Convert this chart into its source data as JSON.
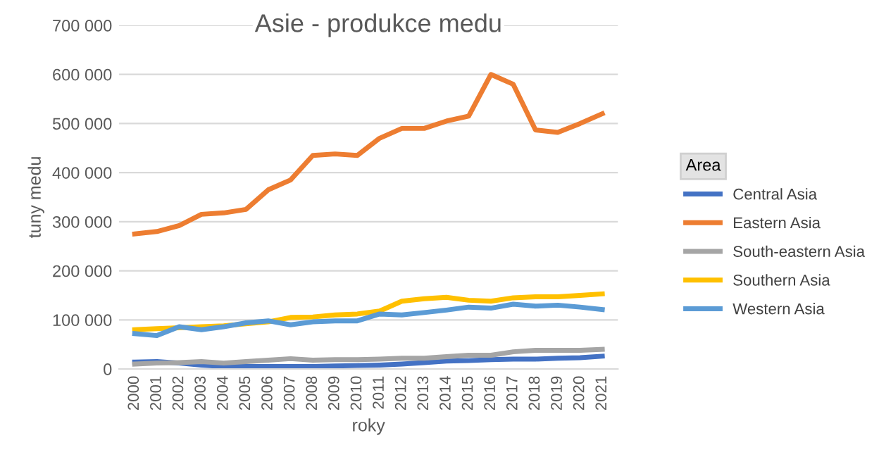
{
  "chart_data": {
    "type": "line",
    "title": "Asie - produkce medu",
    "xlabel": "roky",
    "ylabel": "tuny medu",
    "legend_title": "Area",
    "legend": "right",
    "grid": "y",
    "categories": [
      "2000",
      "2001",
      "2002",
      "2003",
      "2004",
      "2005",
      "2006",
      "2007",
      "2008",
      "2009",
      "2010",
      "2011",
      "2012",
      "2013",
      "2014",
      "2015",
      "2016",
      "2017",
      "2018",
      "2019",
      "2020",
      "2021"
    ],
    "ylim": [
      0,
      700000
    ],
    "yticks": [
      {
        "value": 0,
        "label": "0"
      },
      {
        "value": 100000,
        "label": "100 000"
      },
      {
        "value": 200000,
        "label": "200 000"
      },
      {
        "value": 300000,
        "label": "300 000"
      },
      {
        "value": 400000,
        "label": "400 000"
      },
      {
        "value": 500000,
        "label": "500 000"
      },
      {
        "value": 600000,
        "label": "600 000"
      },
      {
        "value": 700000,
        "label": "700 000"
      }
    ],
    "series": [
      {
        "name": "Central Asia",
        "color": "#4472c4",
        "values": [
          14000,
          15000,
          12000,
          8000,
          5000,
          5000,
          5000,
          5000,
          5000,
          6000,
          7000,
          8000,
          10000,
          13000,
          16000,
          17000,
          19000,
          20000,
          20000,
          22000,
          23000,
          26000
        ]
      },
      {
        "name": "Eastern Asia",
        "color": "#ed7d31",
        "values": [
          275000,
          280000,
          292000,
          315000,
          318000,
          325000,
          365000,
          385000,
          435000,
          438000,
          435000,
          470000,
          490000,
          490000,
          505000,
          515000,
          600000,
          580000,
          487000,
          482000,
          500000,
          520000
        ]
      },
      {
        "name": "South-eastern Asia",
        "color": "#a5a5a5",
        "values": [
          10000,
          12000,
          13000,
          15000,
          12000,
          15000,
          18000,
          21000,
          18000,
          19000,
          19000,
          20000,
          22000,
          22000,
          25000,
          28000,
          28000,
          35000,
          38000,
          38000,
          38000,
          40000
        ]
      },
      {
        "name": "Southern Asia",
        "color": "#ffc000",
        "values": [
          80000,
          82000,
          84000,
          86000,
          88000,
          92000,
          96000,
          105000,
          106000,
          110000,
          112000,
          118000,
          138000,
          143000,
          146000,
          140000,
          138000,
          145000,
          147000,
          147000,
          150000,
          153000
        ]
      },
      {
        "name": "Western Asia",
        "color": "#5b9bd5",
        "values": [
          72000,
          68000,
          86000,
          80000,
          86000,
          94000,
          98000,
          90000,
          96000,
          98000,
          98000,
          112000,
          110000,
          115000,
          120000,
          126000,
          124000,
          132000,
          128000,
          130000,
          126000,
          121000
        ]
      }
    ]
  }
}
